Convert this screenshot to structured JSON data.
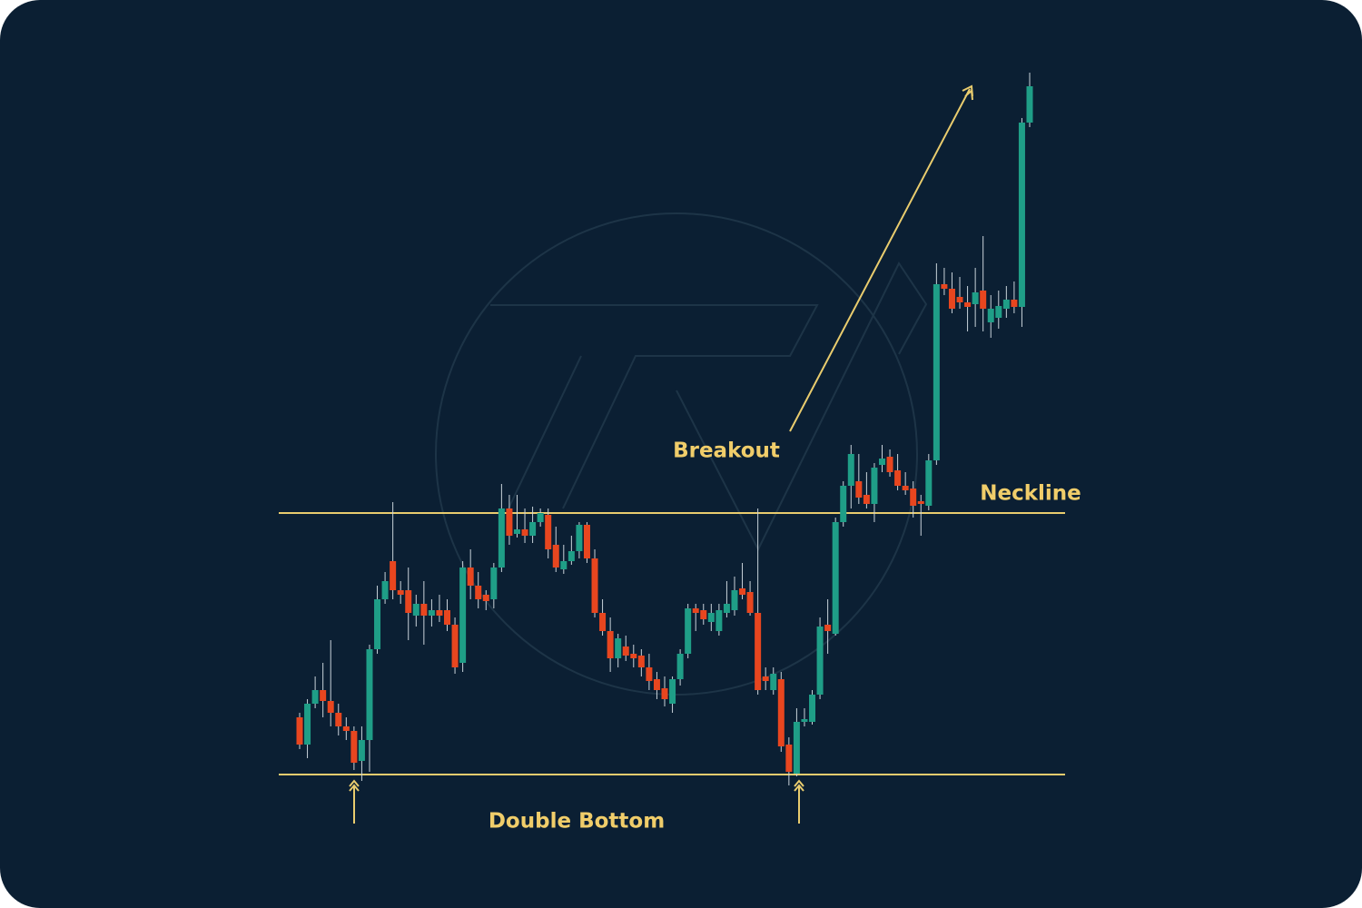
{
  "chart_data": {
    "type": "candlestick",
    "open": [
      210,
      180,
      225,
      240,
      228,
      215,
      200,
      195,
      162,
      185,
      285,
      340,
      382,
      350,
      350,
      322,
      335,
      322,
      328,
      328,
      312,
      270,
      375,
      355,
      345,
      340,
      375,
      440,
      412,
      417,
      410,
      425,
      433,
      400,
      373,
      382,
      393,
      422,
      385,
      325,
      305,
      275,
      288,
      280,
      278,
      265,
      252,
      242,
      225,
      252,
      280,
      330,
      328,
      315,
      305,
      325,
      328,
      352,
      348,
      325,
      255,
      240,
      252,
      180,
      148,
      205,
      205,
      235,
      312,
      302,
      425,
      465,
      470,
      455,
      445,
      488,
      497,
      482,
      465,
      462,
      448,
      443,
      493,
      687,
      682,
      673,
      667,
      665,
      680,
      645,
      650,
      660,
      670,
      662,
      865
    ],
    "high": [
      215,
      230,
      255,
      270,
      295,
      225,
      210,
      200,
      200,
      290,
      355,
      370,
      447,
      360,
      375,
      345,
      360,
      340,
      345,
      340,
      320,
      382,
      395,
      370,
      350,
      380,
      467,
      455,
      455,
      440,
      442,
      440,
      440,
      420,
      400,
      410,
      425,
      425,
      395,
      340,
      320,
      302,
      300,
      290,
      285,
      280,
      260,
      255,
      255,
      285,
      335,
      335,
      335,
      335,
      335,
      360,
      365,
      380,
      360,
      440,
      265,
      265,
      260,
      188,
      220,
      220,
      240,
      320,
      340,
      430,
      470,
      510,
      500,
      480,
      490,
      510,
      505,
      500,
      480,
      470,
      455,
      500,
      710,
      705,
      700,
      695,
      685,
      705,
      740,
      675,
      680,
      685,
      690,
      870,
      920
    ],
    "low": [
      175,
      165,
      220,
      210,
      200,
      190,
      185,
      152,
      140,
      150,
      280,
      335,
      340,
      335,
      295,
      310,
      290,
      310,
      315,
      305,
      258,
      260,
      340,
      330,
      328,
      330,
      370,
      400,
      408,
      402,
      402,
      420,
      385,
      370,
      368,
      378,
      385,
      380,
      320,
      300,
      260,
      265,
      272,
      265,
      255,
      240,
      230,
      222,
      215,
      245,
      275,
      305,
      312,
      305,
      300,
      320,
      322,
      340,
      322,
      235,
      240,
      235,
      172,
      135,
      145,
      200,
      202,
      230,
      280,
      300,
      420,
      440,
      445,
      440,
      425,
      480,
      475,
      460,
      455,
      430,
      410,
      438,
      488,
      675,
      655,
      660,
      635,
      640,
      635,
      628,
      638,
      650,
      655,
      640,
      860
    ],
    "close": [
      180,
      225,
      240,
      228,
      215,
      200,
      195,
      160,
      185,
      285,
      340,
      360,
      350,
      345,
      325,
      335,
      322,
      328,
      322,
      312,
      265,
      375,
      355,
      340,
      338,
      375,
      440,
      410,
      417,
      410,
      425,
      435,
      395,
      375,
      382,
      393,
      422,
      385,
      325,
      305,
      275,
      297,
      278,
      275,
      265,
      250,
      240,
      230,
      252,
      280,
      330,
      325,
      318,
      325,
      328,
      335,
      350,
      345,
      325,
      240,
      250,
      258,
      178,
      150,
      205,
      208,
      235,
      310,
      305,
      425,
      465,
      500,
      452,
      445,
      485,
      495,
      480,
      465,
      460,
      443,
      445,
      493,
      687,
      682,
      660,
      667,
      662,
      678,
      660,
      660,
      663,
      670,
      662,
      865,
      905
    ],
    "up_color": "#1f9e87",
    "down_color": "#e8461f",
    "line_color": "#e9cc6e",
    "ylim": [
      0,
      1000
    ],
    "neckline": {
      "label": "Neckline",
      "value": 435
    },
    "support": 147,
    "annotations": [
      "Breakout",
      "Double Bottom"
    ]
  }
}
